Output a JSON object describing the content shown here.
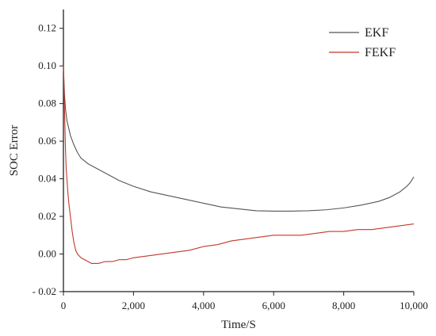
{
  "chart_data": {
    "type": "line",
    "xlabel": "Time/S",
    "ylabel": "SOC Error",
    "xlim": [
      0,
      10000
    ],
    "ylim": [
      -0.02,
      0.13
    ],
    "x_ticks": [
      0,
      2000,
      4000,
      6000,
      8000,
      10000
    ],
    "x_tick_labels": [
      "0",
      "2,000",
      "4,000",
      "6,000",
      "8,000",
      "10,000"
    ],
    "y_ticks": [
      -0.02,
      0.0,
      0.02,
      0.04,
      0.06,
      0.08,
      0.1,
      0.12
    ],
    "y_tick_labels": [
      "- 0.02",
      "0.00",
      "0.02",
      "0.04",
      "0.06",
      "0.08",
      "0.10",
      "0.12"
    ],
    "legend_position": "top-right",
    "grid": false,
    "series": [
      {
        "name": "EKF",
        "color": "#555555",
        "x": [
          0,
          30,
          60,
          100,
          150,
          200,
          300,
          400,
          500,
          700,
          1000,
          1300,
          1600,
          2000,
          2500,
          3000,
          3500,
          4000,
          4500,
          5000,
          5500,
          6000,
          6500,
          7000,
          7500,
          8000,
          8500,
          9000,
          9300,
          9600,
          9800,
          9900,
          10000
        ],
        "y": [
          0.1,
          0.085,
          0.077,
          0.071,
          0.067,
          0.063,
          0.058,
          0.054,
          0.051,
          0.048,
          0.045,
          0.042,
          0.039,
          0.036,
          0.033,
          0.031,
          0.029,
          0.027,
          0.025,
          0.024,
          0.023,
          0.0228,
          0.0228,
          0.023,
          0.0235,
          0.0245,
          0.026,
          0.028,
          0.03,
          0.033,
          0.036,
          0.038,
          0.041
        ]
      },
      {
        "name": "FEKF",
        "color": "#c0392b",
        "x": [
          0,
          20,
          40,
          60,
          80,
          100,
          130,
          160,
          200,
          250,
          300,
          350,
          400,
          500,
          600,
          700,
          800,
          900,
          1000,
          1200,
          1400,
          1600,
          1800,
          2000,
          2400,
          2800,
          3200,
          3600,
          4000,
          4400,
          4800,
          5200,
          5600,
          6000,
          6400,
          6800,
          7200,
          7600,
          8000,
          8400,
          8800,
          9200,
          9600,
          10000
        ],
        "y": [
          0.1,
          0.085,
          0.07,
          0.055,
          0.045,
          0.04,
          0.032,
          0.026,
          0.02,
          0.012,
          0.006,
          0.002,
          0.0,
          -0.002,
          -0.003,
          -0.004,
          -0.005,
          -0.005,
          -0.005,
          -0.004,
          -0.004,
          -0.003,
          -0.003,
          -0.002,
          -0.001,
          0.0,
          0.001,
          0.002,
          0.004,
          0.005,
          0.007,
          0.008,
          0.009,
          0.01,
          0.01,
          0.01,
          0.011,
          0.012,
          0.012,
          0.013,
          0.013,
          0.014,
          0.015,
          0.016
        ]
      }
    ]
  }
}
